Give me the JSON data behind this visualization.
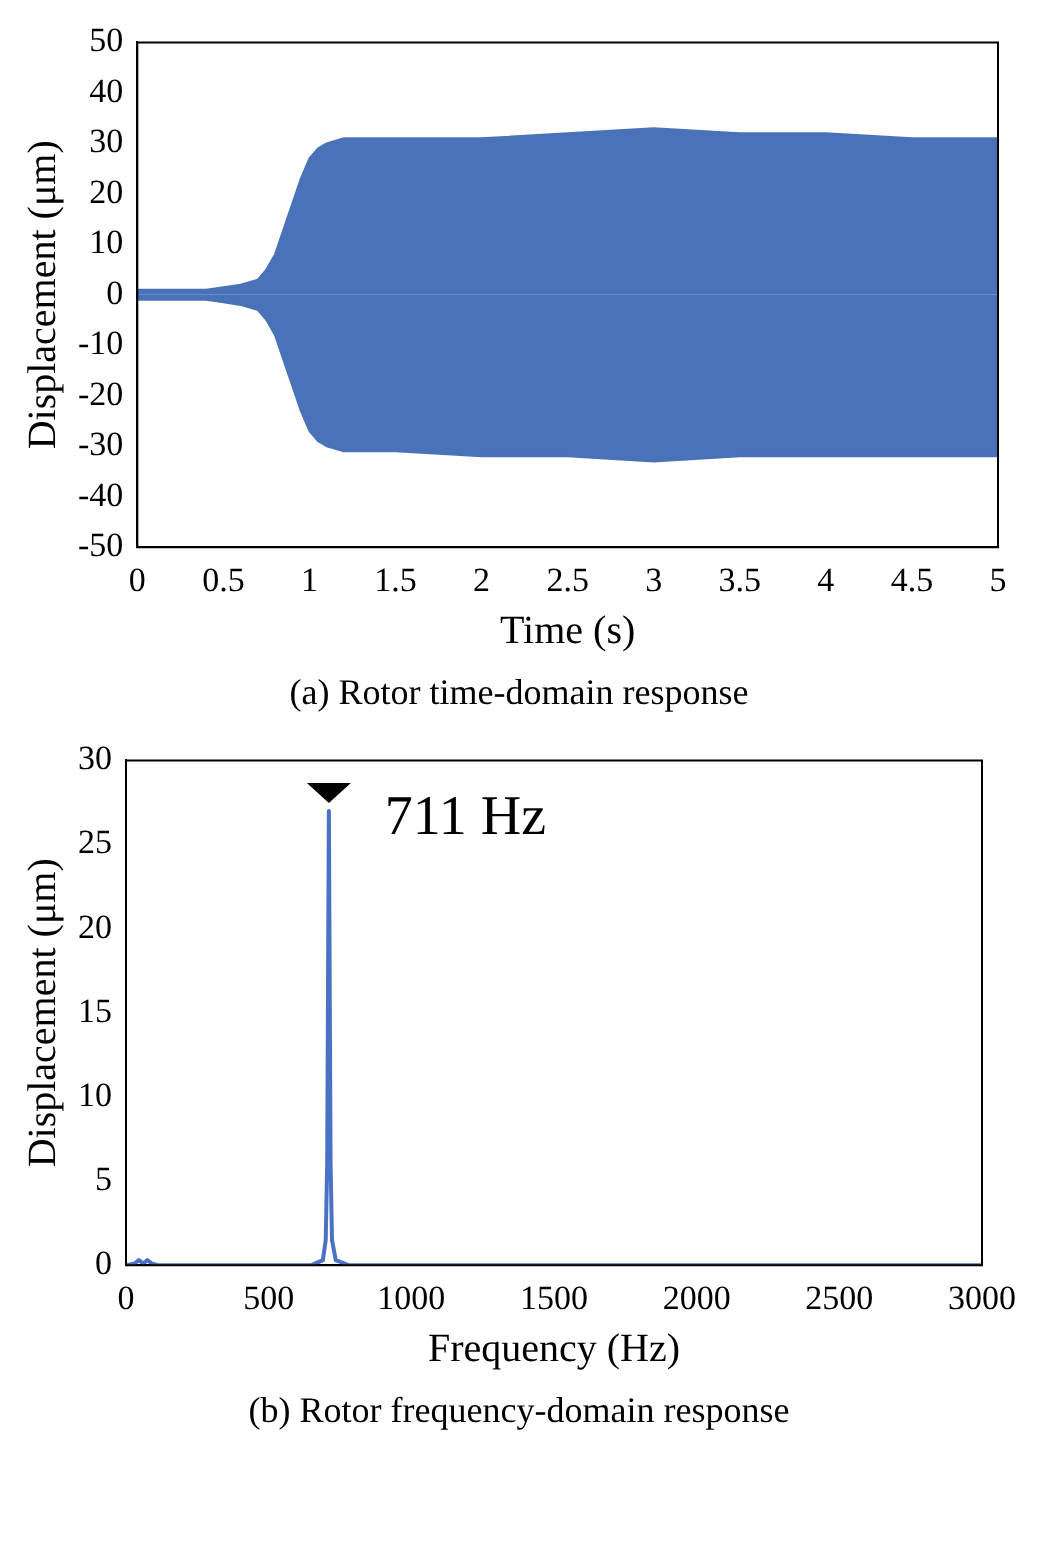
{
  "chart_data": [
    {
      "type": "area",
      "xlabel": "Time (s)",
      "ylabel": "Displacement (μm)",
      "annotations": [
        "(a)  Rotor time-domain response"
      ],
      "xlim": [
        0,
        5
      ],
      "ylim": [
        -50,
        50
      ],
      "xticks": [
        0,
        0.5,
        1,
        1.5,
        2,
        2.5,
        3,
        3.5,
        4,
        4.5,
        5
      ],
      "yticks": [
        -50,
        -40,
        -30,
        -20,
        -10,
        0,
        10,
        20,
        30,
        40,
        50
      ],
      "grid": false,
      "legend": false,
      "series": [
        {
          "color": "#4a72b8",
          "x": [
            0,
            0.2,
            0.4,
            0.5,
            0.6,
            0.7,
            0.75,
            0.8,
            0.85,
            0.9,
            0.95,
            1,
            1.05,
            1.1,
            1.2,
            1.5,
            2,
            2.5,
            3,
            3.5,
            4,
            4.5,
            5
          ],
          "values": [
            1,
            1,
            1,
            1.5,
            2,
            3,
            5,
            8,
            13,
            18,
            23,
            27,
            29,
            30,
            31,
            31,
            31,
            32,
            33,
            32,
            32,
            31,
            31
          ]
        },
        {
          "color": "#4a72b8",
          "x": [
            0,
            0.2,
            0.4,
            0.5,
            0.6,
            0.7,
            0.75,
            0.8,
            0.85,
            0.9,
            0.95,
            1,
            1.05,
            1.1,
            1.2,
            1.5,
            2,
            2.5,
            3,
            3.5,
            4,
            4.5,
            5
          ],
          "values": [
            -1,
            -1,
            -1,
            -1.5,
            -2,
            -3,
            -5,
            -8,
            -13,
            -18,
            -23,
            -27,
            -29,
            -30,
            -31,
            -31,
            -32,
            -32,
            -33,
            -32,
            -32,
            -32,
            -32
          ]
        }
      ]
    },
    {
      "type": "line",
      "xlabel": "Frequency (Hz)",
      "ylabel": "Displacement (μm)",
      "annotations": [
        {
          "text": "711 Hz",
          "x": 711,
          "y": 27
        },
        "(b)  Rotor frequency-domain response"
      ],
      "xlim": [
        0,
        3000
      ],
      "ylim": [
        0,
        30
      ],
      "xticks": [
        0,
        500,
        1000,
        1500,
        2000,
        2500,
        3000
      ],
      "yticks": [
        0,
        5,
        10,
        15,
        20,
        25,
        30
      ],
      "grid": false,
      "legend": false,
      "series": [
        {
          "color": "#4a72c4",
          "x": [
            0,
            30,
            45,
            60,
            75,
            90,
            110,
            650,
            690,
            700,
            705,
            711,
            717,
            722,
            735,
            780,
            3000
          ],
          "values": [
            0,
            0.1,
            0.3,
            0.1,
            0.3,
            0.1,
            0,
            0,
            0.3,
            1.5,
            6,
            27,
            6,
            1.5,
            0.3,
            0,
            0
          ]
        }
      ]
    }
  ]
}
